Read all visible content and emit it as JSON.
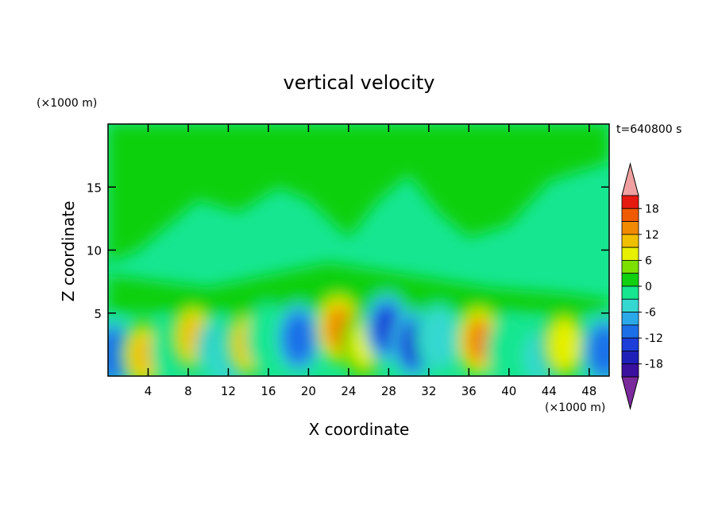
{
  "chart_data": {
    "type": "heatmap",
    "title": "vertical velocity",
    "xlabel": "X coordinate",
    "ylabel": "Z coordinate",
    "x_unit": "(×1000 m)",
    "y_unit": "(×1000 m)",
    "time_label": "t=640800 s",
    "xlim": [
      0,
      50
    ],
    "ylim": [
      0,
      20
    ],
    "x_ticks": [
      4,
      8,
      12,
      16,
      20,
      24,
      28,
      32,
      36,
      40,
      44,
      48
    ],
    "y_ticks": [
      5,
      10,
      15
    ],
    "colorbar": {
      "levels": [
        -21,
        -18,
        -15,
        -12,
        -9,
        -6,
        -3,
        0,
        3,
        6,
        9,
        12,
        15,
        18,
        21
      ],
      "labels": [
        18,
        12,
        6,
        0,
        -6,
        -12,
        -18
      ],
      "colors": [
        "#7b2a9c",
        "#3a109f",
        "#1e20b8",
        "#1d3ed8",
        "#1d6fe8",
        "#2aa8e8",
        "#35d8d0",
        "#16e690",
        "#10d010",
        "#7ce000",
        "#e6f000",
        "#f0c000",
        "#f08a00",
        "#f05a00",
        "#e51a10",
        "#f0a0a0"
      ]
    },
    "features": [
      {
        "x": 0.5,
        "z": 1.7,
        "w": -12
      },
      {
        "x": 3.5,
        "z": 1.7,
        "w": 9
      },
      {
        "x": 6.5,
        "z": 2.0,
        "w": -3
      },
      {
        "x": 8.5,
        "z": 3.2,
        "w": 9
      },
      {
        "x": 11.0,
        "z": 2.0,
        "w": -8
      },
      {
        "x": 12.0,
        "z": 1.5,
        "w": -6
      },
      {
        "x": 14.0,
        "z": 2.6,
        "w": 9
      },
      {
        "x": 16.0,
        "z": 3.0,
        "w": -3
      },
      {
        "x": 19.0,
        "z": 3.0,
        "w": -12
      },
      {
        "x": 23.0,
        "z": 3.8,
        "w": 12
      },
      {
        "x": 25.5,
        "z": 2.5,
        "w": 6
      },
      {
        "x": 27.8,
        "z": 3.8,
        "w": -13
      },
      {
        "x": 30.5,
        "z": 2.5,
        "w": -13
      },
      {
        "x": 33.0,
        "z": 3.0,
        "w": -6
      },
      {
        "x": 37.0,
        "z": 2.8,
        "w": 12
      },
      {
        "x": 40.0,
        "z": 2.0,
        "w": -3
      },
      {
        "x": 43.0,
        "z": 1.5,
        "w": -5
      },
      {
        "x": 45.5,
        "z": 2.5,
        "w": 8
      },
      {
        "x": 49.5,
        "z": 2.0,
        "w": -12
      }
    ]
  }
}
